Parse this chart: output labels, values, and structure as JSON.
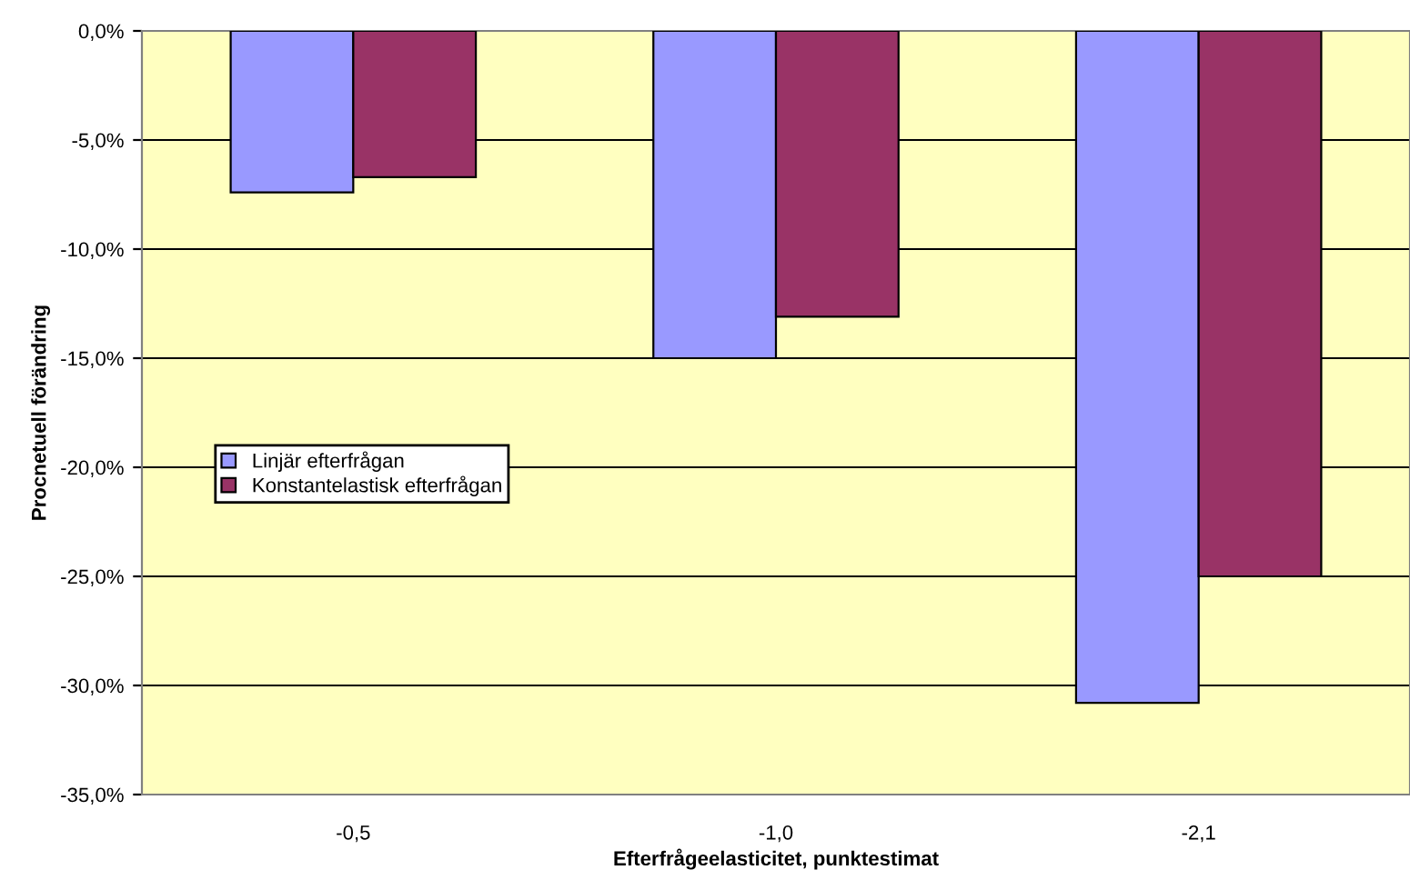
{
  "chart_data": {
    "type": "bar",
    "xlabel": "Efterfrågeelasticitet, punktestimat",
    "ylabel": "Procnetuell förändring",
    "categories": [
      "-0,5",
      "-1,0",
      "-2,1"
    ],
    "series": [
      {
        "name": "Linjär efterfrågan",
        "color": "#9999ff",
        "values": [
          -7.4,
          -15.0,
          -30.8
        ]
      },
      {
        "name": "Konstantelastisk efterfrågan",
        "color": "#993366",
        "values": [
          -6.7,
          -13.1,
          -25.0
        ]
      }
    ],
    "ylim": [
      -35,
      0
    ],
    "yticks": [
      {
        "value": 0,
        "label": "0,0%"
      },
      {
        "value": -5,
        "label": "-5,0%"
      },
      {
        "value": -10,
        "label": "-10,0%"
      },
      {
        "value": -15,
        "label": "-15,0%"
      },
      {
        "value": -20,
        "label": "-20,0%"
      },
      {
        "value": -25,
        "label": "-25,0%"
      },
      {
        "value": -30,
        "label": "-30,0%"
      },
      {
        "value": -35,
        "label": "-35,0%"
      }
    ],
    "grid": "y",
    "legend": "left"
  }
}
